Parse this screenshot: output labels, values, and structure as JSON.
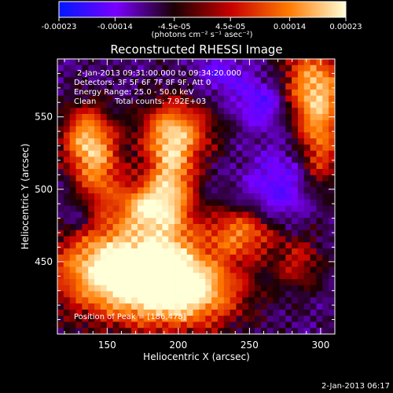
{
  "chart_data": {
    "type": "heatmap",
    "title": "Reconstructed RHESSI Image",
    "xlabel": "Heliocentric X (arcsec)",
    "ylabel": "Heliocentric Y (arcsec)",
    "xlim": [
      115,
      310
    ],
    "ylim": [
      400,
      590
    ],
    "x_ticks": [
      150,
      200,
      250,
      300
    ],
    "y_ticks": [
      450,
      500,
      550
    ],
    "grid": false,
    "colorbar": {
      "unit_label": "(photons cm⁻² s⁻¹ asec⁻²)",
      "range": [
        -0.00023,
        0.00023
      ],
      "tick_labels": [
        "-0.00023",
        "-0.00014",
        "-4.5e-05",
        "4.5e-05",
        "0.00014",
        "0.00023"
      ],
      "colors": [
        "#0018ff",
        "#7a00ff",
        "#1a0004",
        "#c80000",
        "#ff7a00",
        "#ffffd8"
      ]
    },
    "annotations": [
      "2-Jan-2013 09:31:00.000 to 09:34:20.000",
      "Detectors: 3F 5F 6F 7F 8F 9F, Att 0",
      "Energy Range: 25.0 - 50.0 keV",
      "Clean",
      "Total counts: 7.92E+03",
      "Position of Peak = [186,478]"
    ],
    "peak": {
      "x": 186,
      "y": 478
    },
    "blobs": [
      {
        "x": 160,
        "y": 445,
        "amp": 2.0,
        "sx": 32,
        "sy": 22
      },
      {
        "x": 205,
        "y": 430,
        "amp": 1.6,
        "sx": 28,
        "sy": 18
      },
      {
        "x": 245,
        "y": 470,
        "amp": 1.1,
        "sx": 18,
        "sy": 12
      },
      {
        "x": 195,
        "y": 505,
        "amp": 1.4,
        "sx": 12,
        "sy": 30
      },
      {
        "x": 175,
        "y": 488,
        "amp": 1.1,
        "sx": 12,
        "sy": 12
      },
      {
        "x": 145,
        "y": 510,
        "amp": 0.9,
        "sx": 12,
        "sy": 20
      },
      {
        "x": 135,
        "y": 535,
        "amp": 1.2,
        "sx": 12,
        "sy": 16
      },
      {
        "x": 200,
        "y": 540,
        "amp": 0.9,
        "sx": 20,
        "sy": 14
      },
      {
        "x": 295,
        "y": 570,
        "amp": 1.4,
        "sx": 16,
        "sy": 20
      },
      {
        "x": 300,
        "y": 530,
        "amp": 0.9,
        "sx": 10,
        "sy": 22
      },
      {
        "x": 285,
        "y": 450,
        "amp": 0.6,
        "sx": 12,
        "sy": 14
      },
      {
        "x": 260,
        "y": 560,
        "amp": -0.7,
        "sx": 14,
        "sy": 12
      },
      {
        "x": 230,
        "y": 580,
        "amp": -0.5,
        "sx": 12,
        "sy": 10
      },
      {
        "x": 270,
        "y": 500,
        "amp": -0.6,
        "sx": 16,
        "sy": 20
      },
      {
        "x": 130,
        "y": 480,
        "amp": -0.4,
        "sx": 10,
        "sy": 10
      }
    ],
    "footer": "2-Jan-2013 06:17"
  }
}
